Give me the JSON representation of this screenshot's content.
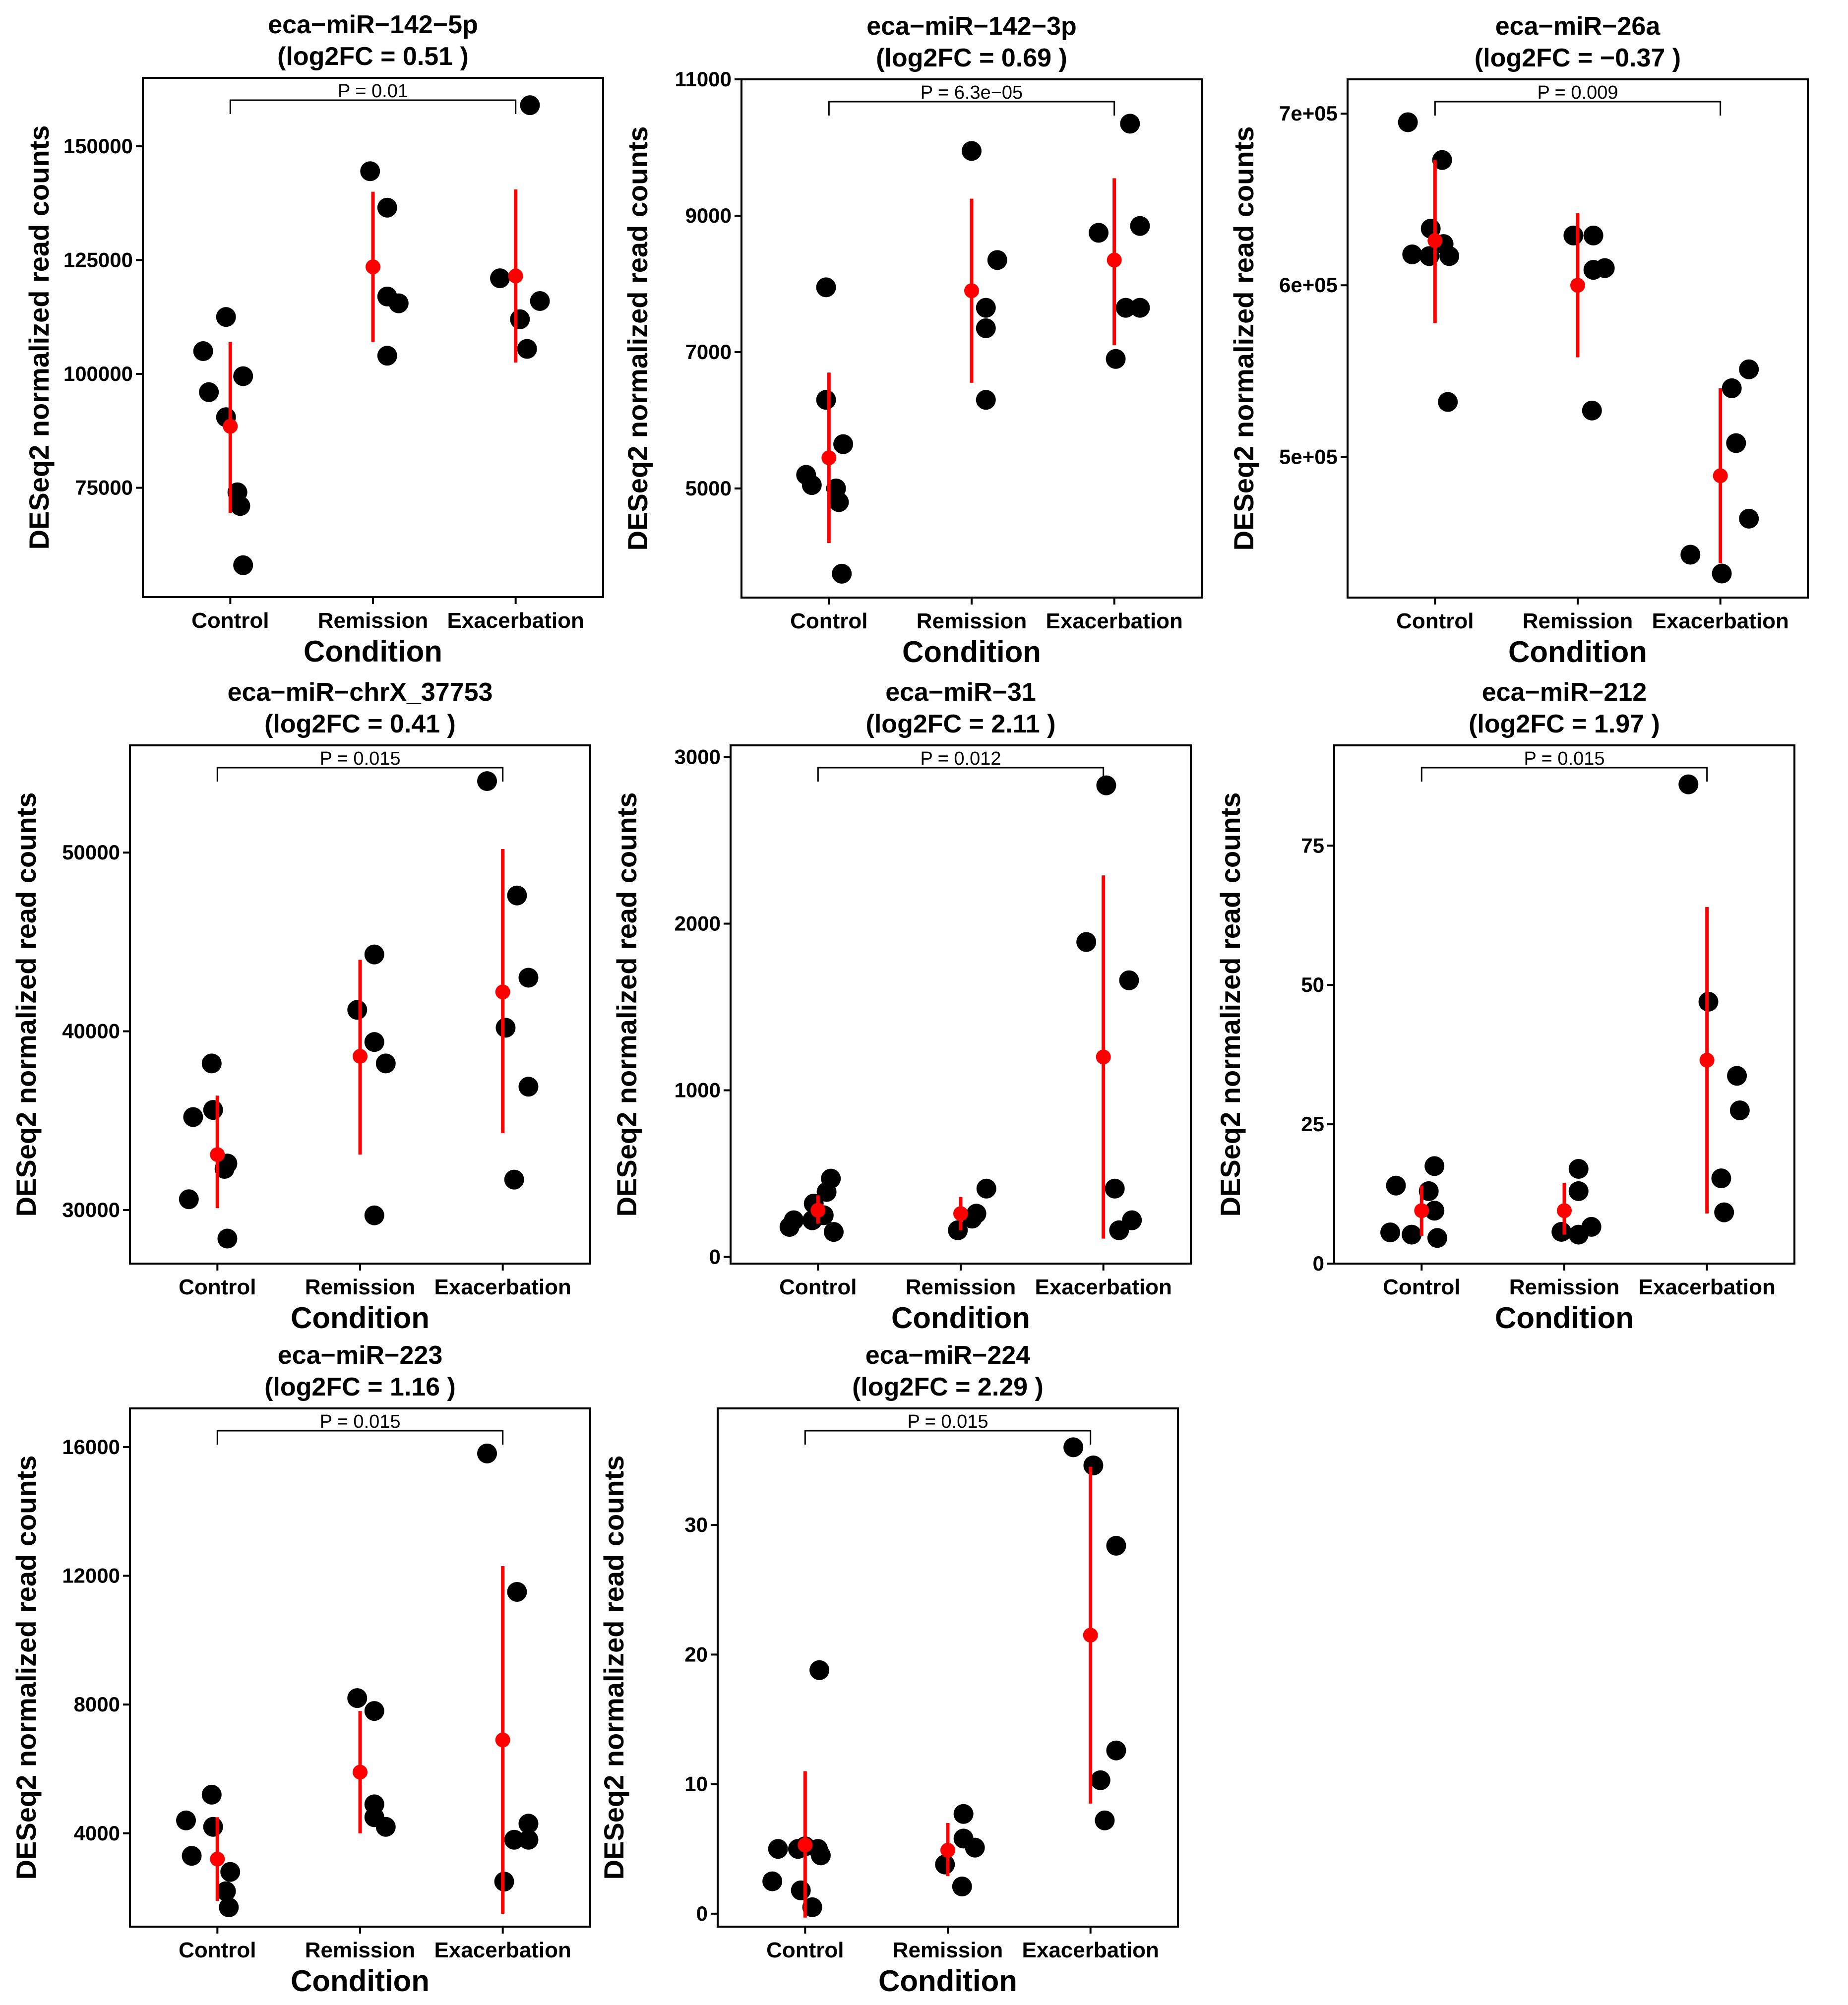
{
  "chart_data": [
    {
      "type": "scatter",
      "title": "eca−miR−142−5p",
      "subtitle": "(log2FC =  0.51 )",
      "xlabel": "Condition",
      "ylabel": "DESeq2 normalized read counts",
      "categories": [
        "Control",
        "Remission",
        "Exacerbation"
      ],
      "ylim": [
        51000,
        165000
      ],
      "yticks": [
        75000,
        100000,
        125000,
        150000
      ],
      "ytick_labels": [
        "75000",
        "100000",
        "125000",
        "150000"
      ],
      "pvalue": {
        "label": "P =  0.01",
        "from": 0,
        "to": 2
      },
      "points": [
        [
          [
            -0.19,
            105000
          ],
          [
            -0.15,
            96000
          ],
          [
            -0.03,
            112500
          ],
          [
            -0.03,
            90500
          ],
          [
            0.09,
            99500
          ],
          [
            0.05,
            74000
          ],
          [
            0.07,
            71000
          ],
          [
            0.09,
            58000
          ]
        ],
        [
          [
            -0.02,
            144500
          ],
          [
            0.1,
            136500
          ],
          [
            0.1,
            117000
          ],
          [
            0.18,
            115500
          ],
          [
            0.1,
            104000
          ]
        ],
        [
          [
            -0.11,
            121000
          ],
          [
            0.1,
            159000
          ],
          [
            0.17,
            116000
          ],
          [
            0.03,
            112000
          ],
          [
            0.08,
            105500
          ]
        ]
      ],
      "summary": [
        {
          "mean": 88500,
          "low": 69500,
          "high": 107000
        },
        {
          "mean": 123500,
          "low": 107000,
          "high": 140000
        },
        {
          "mean": 121500,
          "low": 102500,
          "high": 140500
        }
      ]
    },
    {
      "type": "scatter",
      "title": "eca−miR−142−3p",
      "subtitle": "(log2FC =  0.69 )",
      "xlabel": "Condition",
      "ylabel": "DESeq2 normalized read counts",
      "categories": [
        "Control",
        "Remission",
        "Exacerbation"
      ],
      "ylim": [
        3400,
        11000
      ],
      "yticks": [
        5000,
        7000,
        9000,
        11000
      ],
      "ytick_labels": [
        "5000",
        "7000",
        "9000",
        "11000"
      ],
      "pvalue": {
        "label": "P =  6.3e−05",
        "from": 0,
        "to": 2
      },
      "points": [
        [
          [
            -0.16,
            5200
          ],
          [
            -0.12,
            5050
          ],
          [
            -0.02,
            6300
          ],
          [
            0.1,
            5650
          ],
          [
            0.05,
            5000
          ],
          [
            0.07,
            4800
          ],
          [
            0.09,
            3750
          ],
          [
            -0.02,
            7950
          ]
        ],
        [
          [
            0.0,
            9950
          ],
          [
            0.18,
            8350
          ],
          [
            0.1,
            7650
          ],
          [
            0.1,
            7350
          ],
          [
            0.1,
            6300
          ]
        ],
        [
          [
            -0.11,
            8750
          ],
          [
            0.11,
            10350
          ],
          [
            0.18,
            8850
          ],
          [
            0.08,
            7650
          ],
          [
            0.18,
            7650
          ],
          [
            0.01,
            6900
          ]
        ]
      ],
      "summary": [
        {
          "mean": 5450,
          "low": 4200,
          "high": 6700
        },
        {
          "mean": 7900,
          "low": 6550,
          "high": 9250
        },
        {
          "mean": 8350,
          "low": 7100,
          "high": 9550
        }
      ]
    },
    {
      "type": "scatter",
      "title": "eca−miR−26a",
      "subtitle": "(log2FC =  −0.37 )",
      "xlabel": "Condition",
      "ylabel": "DESeq2 normalized read counts",
      "categories": [
        "Control",
        "Remission",
        "Exacerbation"
      ],
      "ylim": [
        418000,
        720000
      ],
      "yticks": [
        500000,
        600000,
        700000
      ],
      "ytick_labels": [
        "5e+05",
        "6e+05",
        "7e+05"
      ],
      "pvalue": {
        "label": "P =  0.009",
        "from": 0,
        "to": 2
      },
      "points": [
        [
          [
            -0.19,
            695000
          ],
          [
            0.05,
            673000
          ],
          [
            -0.03,
            633000
          ],
          [
            0.06,
            624000
          ],
          [
            -0.16,
            618000
          ],
          [
            -0.04,
            617000
          ],
          [
            0.1,
            617000
          ],
          [
            0.09,
            532000
          ]
        ],
        [
          [
            -0.03,
            629000
          ],
          [
            0.11,
            629000
          ],
          [
            0.11,
            609000
          ],
          [
            0.19,
            610000
          ],
          [
            0.1,
            527000
          ]
        ],
        [
          [
            -0.21,
            443000
          ],
          [
            0.01,
            432000
          ],
          [
            0.08,
            540000
          ],
          [
            0.11,
            508000
          ],
          [
            0.2,
            551000
          ],
          [
            0.2,
            464000
          ]
        ]
      ],
      "summary": [
        {
          "mean": 626000,
          "low": 578000,
          "high": 673000
        },
        {
          "mean": 600000,
          "low": 558000,
          "high": 642000
        },
        {
          "mean": 489000,
          "low": 438000,
          "high": 540000
        }
      ]
    },
    {
      "type": "scatter",
      "title": "eca−miR−chrX_37753",
      "subtitle": "(log2FC =  0.41 )",
      "xlabel": "Condition",
      "ylabel": "DESeq2 normalized read counts",
      "categories": [
        "Control",
        "Remission",
        "Exacerbation"
      ],
      "ylim": [
        27000,
        56000
      ],
      "yticks": [
        30000,
        40000,
        50000
      ],
      "ytick_labels": [
        "30000",
        "40000",
        "50000"
      ],
      "pvalue": {
        "label": "P =  0.015",
        "from": 0,
        "to": 2
      },
      "points": [
        [
          [
            -0.2,
            30600
          ],
          [
            -0.17,
            35200
          ],
          [
            -0.04,
            38200
          ],
          [
            -0.03,
            35600
          ],
          [
            0.07,
            32600
          ],
          [
            0.05,
            32300
          ],
          [
            0.07,
            28400
          ]
        ],
        [
          [
            -0.02,
            41200
          ],
          [
            0.1,
            44300
          ],
          [
            0.1,
            39400
          ],
          [
            0.18,
            38200
          ],
          [
            0.1,
            29700
          ]
        ],
        [
          [
            -0.11,
            54000
          ],
          [
            0.1,
            47600
          ],
          [
            0.18,
            43000
          ],
          [
            0.02,
            40200
          ],
          [
            0.18,
            36900
          ],
          [
            0.08,
            31700
          ]
        ]
      ],
      "summary": [
        {
          "mean": 33100,
          "low": 30100,
          "high": 36400
        },
        {
          "mean": 38600,
          "low": 33100,
          "high": 44000
        },
        {
          "mean": 42200,
          "low": 34300,
          "high": 50200
        }
      ]
    },
    {
      "type": "scatter",
      "title": "eca−miR−31",
      "subtitle": "(log2FC =  2.11 )",
      "xlabel": "Condition",
      "ylabel": "DESeq2 normalized read counts",
      "categories": [
        "Control",
        "Remission",
        "Exacerbation"
      ],
      "ylim": [
        -40,
        3070
      ],
      "yticks": [
        0,
        1000,
        2000,
        3000
      ],
      "ytick_labels": [
        "0",
        "1000",
        "2000",
        "3000"
      ],
      "pvalue": {
        "label": "P =  0.012",
        "from": 0,
        "to": 2
      },
      "points": [
        [
          [
            -0.2,
            180
          ],
          [
            -0.17,
            220
          ],
          [
            -0.03,
            320
          ],
          [
            -0.04,
            220
          ],
          [
            0.06,
            390
          ],
          [
            0.09,
            470
          ],
          [
            0.11,
            150
          ],
          [
            0.04,
            250
          ]
        ],
        [
          [
            -0.02,
            160
          ],
          [
            0.08,
            230
          ],
          [
            0.11,
            260
          ],
          [
            0.18,
            410
          ]
        ],
        [
          [
            -0.12,
            1890
          ],
          [
            0.02,
            2830
          ],
          [
            0.18,
            1660
          ],
          [
            0.08,
            410
          ],
          [
            0.11,
            160
          ],
          [
            0.2,
            220
          ]
        ]
      ],
      "summary": [
        {
          "mean": 280,
          "low": 200,
          "high": 370
        },
        {
          "mean": 260,
          "low": 160,
          "high": 360
        },
        {
          "mean": 1200,
          "low": 110,
          "high": 2290
        }
      ]
    },
    {
      "type": "scatter",
      "title": "eca−miR−212",
      "subtitle": "(log2FC =  1.97 )",
      "xlabel": "Condition",
      "ylabel": "DESeq2 normalized read counts",
      "categories": [
        "Control",
        "Remission",
        "Exacerbation"
      ],
      "ylim": [
        0,
        93
      ],
      "yticks": [
        0,
        25,
        50,
        75
      ],
      "ytick_labels": [
        "0",
        "25",
        "50",
        "75"
      ],
      "pvalue": {
        "label": "P =  0.015",
        "from": 0,
        "to": 2
      },
      "points": [
        [
          [
            -0.22,
            5.6
          ],
          [
            -0.18,
            14
          ],
          [
            -0.07,
            5.2
          ],
          [
            0.05,
            13
          ],
          [
            0.09,
            17.5
          ],
          [
            0.09,
            9.5
          ],
          [
            0.11,
            4.6
          ]
        ],
        [
          [
            -0.02,
            5.7
          ],
          [
            0.1,
            17
          ],
          [
            0.1,
            13
          ],
          [
            0.1,
            5.2
          ],
          [
            0.19,
            6.6
          ]
        ],
        [
          [
            -0.13,
            86
          ],
          [
            0.01,
            47
          ],
          [
            0.21,
            33.7
          ],
          [
            0.23,
            27.5
          ],
          [
            0.1,
            15.3
          ],
          [
            0.12,
            9.2
          ]
        ]
      ],
      "summary": [
        {
          "mean": 9.5,
          "low": 5.0,
          "high": 14.0
        },
        {
          "mean": 9.5,
          "low": 5.2,
          "high": 14.5
        },
        {
          "mean": 36.5,
          "low": 9.0,
          "high": 64.0
        }
      ]
    },
    {
      "type": "scatter",
      "title": "eca−miR−223",
      "subtitle": "(log2FC =  1.16 )",
      "xlabel": "Condition",
      "ylabel": "DESeq2 normalized read counts",
      "categories": [
        "Control",
        "Remission",
        "Exacerbation"
      ],
      "ylim": [
        1100,
        17200
      ],
      "yticks": [
        4000,
        8000,
        12000,
        16000
      ],
      "ytick_labels": [
        "4000",
        "8000",
        "12000",
        "16000"
      ],
      "pvalue": {
        "label": "P =  0.015",
        "from": 0,
        "to": 2
      },
      "points": [
        [
          [
            -0.22,
            4400
          ],
          [
            -0.18,
            3300
          ],
          [
            -0.04,
            5200
          ],
          [
            -0.03,
            4200
          ],
          [
            0.09,
            2800
          ],
          [
            0.06,
            2200
          ],
          [
            0.08,
            1700
          ]
        ],
        [
          [
            -0.02,
            8200
          ],
          [
            0.1,
            7800
          ],
          [
            0.1,
            4900
          ],
          [
            0.1,
            4500
          ],
          [
            0.18,
            4200
          ]
        ],
        [
          [
            -0.11,
            15800
          ],
          [
            0.1,
            11500
          ],
          [
            0.18,
            4300
          ],
          [
            0.08,
            3800
          ],
          [
            0.18,
            3800
          ],
          [
            0.01,
            2500
          ]
        ]
      ],
      "summary": [
        {
          "mean": 3200,
          "low": 1900,
          "high": 4500
        },
        {
          "mean": 5900,
          "low": 4000,
          "high": 7800
        },
        {
          "mean": 6900,
          "low": 1500,
          "high": 12300
        }
      ]
    },
    {
      "type": "scatter",
      "title": "eca−miR−224",
      "subtitle": "(log2FC =  2.29 )",
      "xlabel": "Condition",
      "ylabel": "DESeq2 normalized read counts",
      "categories": [
        "Control",
        "Remission",
        "Exacerbation"
      ],
      "ylim": [
        -1,
        39
      ],
      "yticks": [
        0,
        10,
        20,
        30
      ],
      "ytick_labels": [
        "0",
        "10",
        "20",
        "30"
      ],
      "pvalue": {
        "label": "P =  0.015",
        "from": 0,
        "to": 2
      },
      "points": [
        [
          [
            -0.23,
            2.5
          ],
          [
            -0.19,
            5.0
          ],
          [
            -0.05,
            5.0
          ],
          [
            0.0,
            5.2
          ],
          [
            0.09,
            5.0
          ],
          [
            0.11,
            4.5
          ],
          [
            -0.03,
            1.8
          ],
          [
            0.05,
            0.5
          ],
          [
            0.1,
            18.8
          ]
        ],
        [
          [
            -0.02,
            3.8
          ],
          [
            0.11,
            7.7
          ],
          [
            0.11,
            5.8
          ],
          [
            0.19,
            5.1
          ],
          [
            0.1,
            2.1
          ]
        ],
        [
          [
            -0.12,
            36
          ],
          [
            0.02,
            34.6
          ],
          [
            0.18,
            28.4
          ],
          [
            0.18,
            12.6
          ],
          [
            0.07,
            10.3
          ],
          [
            0.1,
            7.2
          ]
        ]
      ],
      "summary": [
        {
          "mean": 5.3,
          "low": -0.3,
          "high": 11.0
        },
        {
          "mean": 4.9,
          "low": 2.9,
          "high": 7.0
        },
        {
          "mean": 21.5,
          "low": 8.5,
          "high": 34.5
        }
      ]
    }
  ]
}
